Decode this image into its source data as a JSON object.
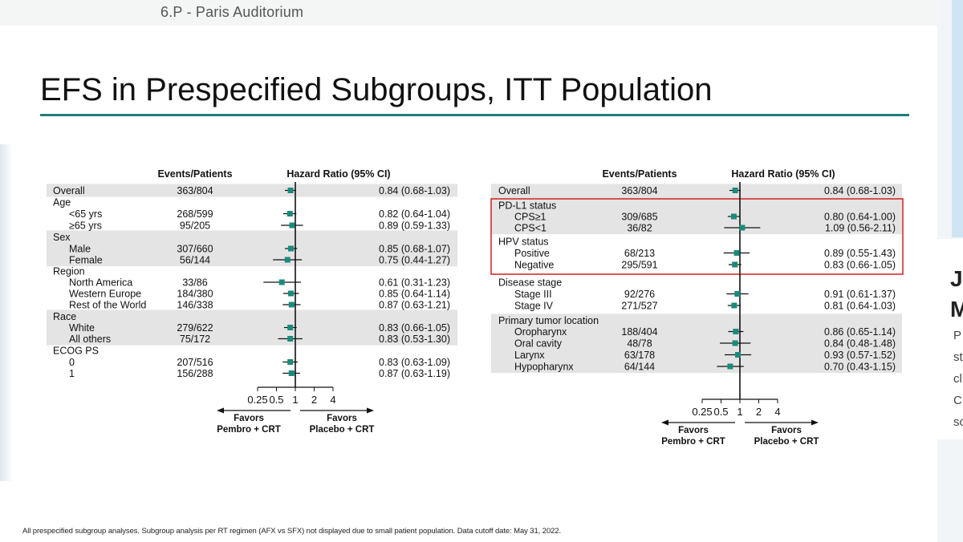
{
  "header": {
    "room": "6.P - Paris Auditorium"
  },
  "slide": {
    "title": "EFS in Prespecified Subgroups, ITT Population",
    "footnote": "All prespecified subgroup analyses. Subgroup analysis per RT regimen (AFX vs SFX) not displayed due to small patient population. Data cutoff date: May 31, 2022."
  },
  "side_panel": {
    "letters": [
      "J",
      "M",
      "P",
      "st",
      "cl",
      "C",
      "sc"
    ]
  },
  "colors": {
    "marker": "#1b8a7c",
    "accent_rule": "#1f7f79",
    "highlight_box": "#d02020",
    "band": "#e4e4e4"
  },
  "chart_data": [
    {
      "type": "forest",
      "headers": {
        "events": "Events/Patients",
        "hr": "Hazard  Ratio (95% CI)"
      },
      "x_ticks": [
        "0.25",
        "0.5",
        "1",
        "2",
        "4"
      ],
      "x_scale": "log2",
      "xlim": [
        0.25,
        4
      ],
      "reference_line": 1,
      "favors_left": [
        "Favors",
        "Pembro + CRT"
      ],
      "favors_right": [
        "Favors",
        "Placebo + CRT"
      ],
      "rows": [
        {
          "label": "Overall",
          "events": "363/804",
          "hr": 0.84,
          "lo": 0.68,
          "hi": 1.03,
          "ci_text": "0.84 (0.68-1.03)",
          "band": true
        },
        {
          "label": "Age",
          "header": true
        },
        {
          "label": "<65 yrs",
          "events": "268/599",
          "hr": 0.82,
          "lo": 0.64,
          "hi": 1.04,
          "ci_text": "0.82 (0.64-1.04)"
        },
        {
          "label": "≥65 yrs",
          "events": "95/205",
          "hr": 0.89,
          "lo": 0.59,
          "hi": 1.33,
          "ci_text": "0.89 (0.59-1.33)"
        },
        {
          "label": "Sex",
          "header": true,
          "band": true
        },
        {
          "label": "Male",
          "events": "307/660",
          "hr": 0.85,
          "lo": 0.68,
          "hi": 1.07,
          "ci_text": "0.85 (0.68-1.07)",
          "band": true
        },
        {
          "label": "Female",
          "events": "56/144",
          "hr": 0.75,
          "lo": 0.44,
          "hi": 1.27,
          "ci_text": "0.75 (0.44-1.27)",
          "band": true
        },
        {
          "label": "Region",
          "header": true
        },
        {
          "label": "North America",
          "events": "33/86",
          "hr": 0.61,
          "lo": 0.31,
          "hi": 1.23,
          "ci_text": "0.61 (0.31-1.23)"
        },
        {
          "label": "Western Europe",
          "events": "184/380",
          "hr": 0.85,
          "lo": 0.64,
          "hi": 1.14,
          "ci_text": "0.85 (0.64-1.14)"
        },
        {
          "label": "Rest of the World",
          "events": "146/338",
          "hr": 0.87,
          "lo": 0.63,
          "hi": 1.21,
          "ci_text": "0.87 (0.63-1.21)"
        },
        {
          "label": "Race",
          "header": true,
          "band": true
        },
        {
          "label": "White",
          "events": "279/622",
          "hr": 0.83,
          "lo": 0.66,
          "hi": 1.05,
          "ci_text": "0.83 (0.66-1.05)",
          "band": true
        },
        {
          "label": "All others",
          "events": "75/172",
          "hr": 0.83,
          "lo": 0.53,
          "hi": 1.3,
          "ci_text": "0.83 (0.53-1.30)",
          "band": true
        },
        {
          "label": "ECOG PS",
          "header": true
        },
        {
          "label": "0",
          "events": "207/516",
          "hr": 0.83,
          "lo": 0.63,
          "hi": 1.09,
          "ci_text": "0.83 (0.63-1.09)"
        },
        {
          "label": "1",
          "events": "156/288",
          "hr": 0.87,
          "lo": 0.63,
          "hi": 1.19,
          "ci_text": "0.87 (0.63-1.19)"
        }
      ]
    },
    {
      "type": "forest",
      "headers": {
        "events": "Events/Patients",
        "hr": "Hazard  Ratio (95% CI)"
      },
      "x_ticks": [
        "0.25",
        "0.5",
        "1",
        "2",
        "4"
      ],
      "x_scale": "log2",
      "xlim": [
        0.25,
        4
      ],
      "reference_line": 1,
      "favors_left": [
        "Favors",
        "Pembro + CRT"
      ],
      "favors_right": [
        "Favors",
        "Placebo + CRT"
      ],
      "highlight_groups": [
        "PD-L1 status",
        "HPV status"
      ],
      "rows": [
        {
          "label": "Overall",
          "events": "363/804",
          "hr": 0.84,
          "lo": 0.68,
          "hi": 1.03,
          "ci_text": "0.84 (0.68-1.03)",
          "band": true
        },
        {
          "label": "PD-L1 status",
          "header": true,
          "band": true
        },
        {
          "label": "CPS≥1",
          "events": "309/685",
          "hr": 0.8,
          "lo": 0.64,
          "hi": 1.0,
          "ci_text": "0.80 (0.64-1.00)",
          "band": true
        },
        {
          "label": "CPS<1",
          "events": "36/82",
          "hr": 1.09,
          "lo": 0.56,
          "hi": 2.11,
          "ci_text": "1.09 (0.56-2.11)",
          "band": true
        },
        {
          "label": "HPV status",
          "header": true
        },
        {
          "label": "Positive",
          "events": "68/213",
          "hr": 0.89,
          "lo": 0.55,
          "hi": 1.43,
          "ci_text": "0.89 (0.55-1.43)"
        },
        {
          "label": "Negative",
          "events": "295/591",
          "hr": 0.83,
          "lo": 0.66,
          "hi": 1.05,
          "ci_text": "0.83 (0.66-1.05)"
        },
        {
          "label": "Disease stage",
          "header": true
        },
        {
          "label": "Stage III",
          "events": "92/276",
          "hr": 0.91,
          "lo": 0.61,
          "hi": 1.37,
          "ci_text": "0.91 (0.61-1.37)"
        },
        {
          "label": "Stage IV",
          "events": "271/527",
          "hr": 0.81,
          "lo": 0.64,
          "hi": 1.03,
          "ci_text": "0.81 (0.64-1.03)"
        },
        {
          "label": "Primary tumor location",
          "header": true,
          "band": true
        },
        {
          "label": "Oropharynx",
          "events": "188/404",
          "hr": 0.86,
          "lo": 0.65,
          "hi": 1.14,
          "ci_text": "0.86 (0.65-1.14)",
          "band": true
        },
        {
          "label": "Oral cavity",
          "events": "48/78",
          "hr": 0.84,
          "lo": 0.48,
          "hi": 1.48,
          "ci_text": "0.84 (0.48-1.48)",
          "band": true
        },
        {
          "label": "Larynx",
          "events": "63/178",
          "hr": 0.93,
          "lo": 0.57,
          "hi": 1.52,
          "ci_text": "0.93 (0.57-1.52)",
          "band": true
        },
        {
          "label": "Hypopharynx",
          "events": "64/144",
          "hr": 0.7,
          "lo": 0.43,
          "hi": 1.15,
          "ci_text": "0.70 (0.43-1.15)",
          "band": true
        }
      ]
    }
  ]
}
